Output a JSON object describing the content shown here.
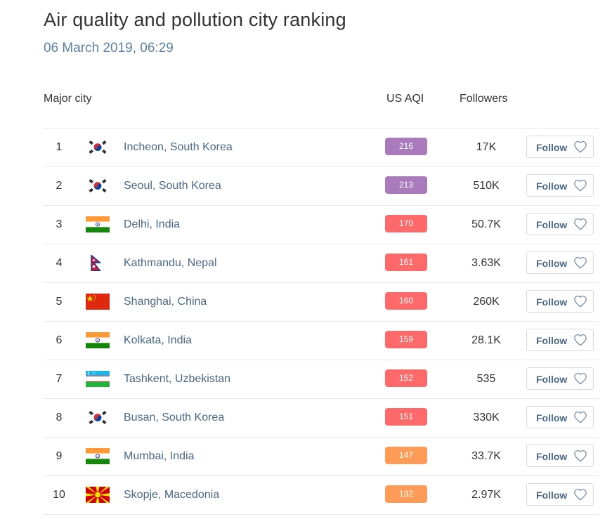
{
  "page": {
    "title": "Air quality and pollution city ranking",
    "subtitle": "06 March 2019, 06:29"
  },
  "table": {
    "headers": {
      "city": "Major city",
      "aqi": "US AQI",
      "followers": "Followers"
    },
    "follow_label": "Follow",
    "rows": [
      {
        "rank": "1",
        "city": "Incheon, South Korea",
        "aqi": "216",
        "aqi_color": "#a97abc",
        "followers": "17K",
        "flag": "south-korea-flag-icon"
      },
      {
        "rank": "2",
        "city": "Seoul, South Korea",
        "aqi": "213",
        "aqi_color": "#a97abc",
        "followers": "510K",
        "flag": "south-korea-flag-icon"
      },
      {
        "rank": "3",
        "city": "Delhi, India",
        "aqi": "170",
        "aqi_color": "#fe6a69",
        "followers": "50.7K",
        "flag": "india-flag-icon"
      },
      {
        "rank": "4",
        "city": "Kathmandu, Nepal",
        "aqi": "161",
        "aqi_color": "#fe6a69",
        "followers": "3.63K",
        "flag": "nepal-flag-icon"
      },
      {
        "rank": "5",
        "city": "Shanghai, China",
        "aqi": "160",
        "aqi_color": "#fe6a69",
        "followers": "260K",
        "flag": "china-flag-icon"
      },
      {
        "rank": "6",
        "city": "Kolkata, India",
        "aqi": "159",
        "aqi_color": "#fe6a69",
        "followers": "28.1K",
        "flag": "india-flag-icon"
      },
      {
        "rank": "7",
        "city": "Tashkent, Uzbekistan",
        "aqi": "152",
        "aqi_color": "#fe6a69",
        "followers": "535",
        "flag": "uzbekistan-flag-icon"
      },
      {
        "rank": "8",
        "city": "Busan, South Korea",
        "aqi": "151",
        "aqi_color": "#fe6a69",
        "followers": "330K",
        "flag": "south-korea-flag-icon"
      },
      {
        "rank": "9",
        "city": "Mumbai, India",
        "aqi": "147",
        "aqi_color": "#fe9b57",
        "followers": "33.7K",
        "flag": "india-flag-icon"
      },
      {
        "rank": "10",
        "city": "Skopje, Macedonia",
        "aqi": "132",
        "aqi_color": "#fe9b57",
        "followers": "2.97K",
        "flag": "macedonia-flag-icon"
      }
    ]
  }
}
